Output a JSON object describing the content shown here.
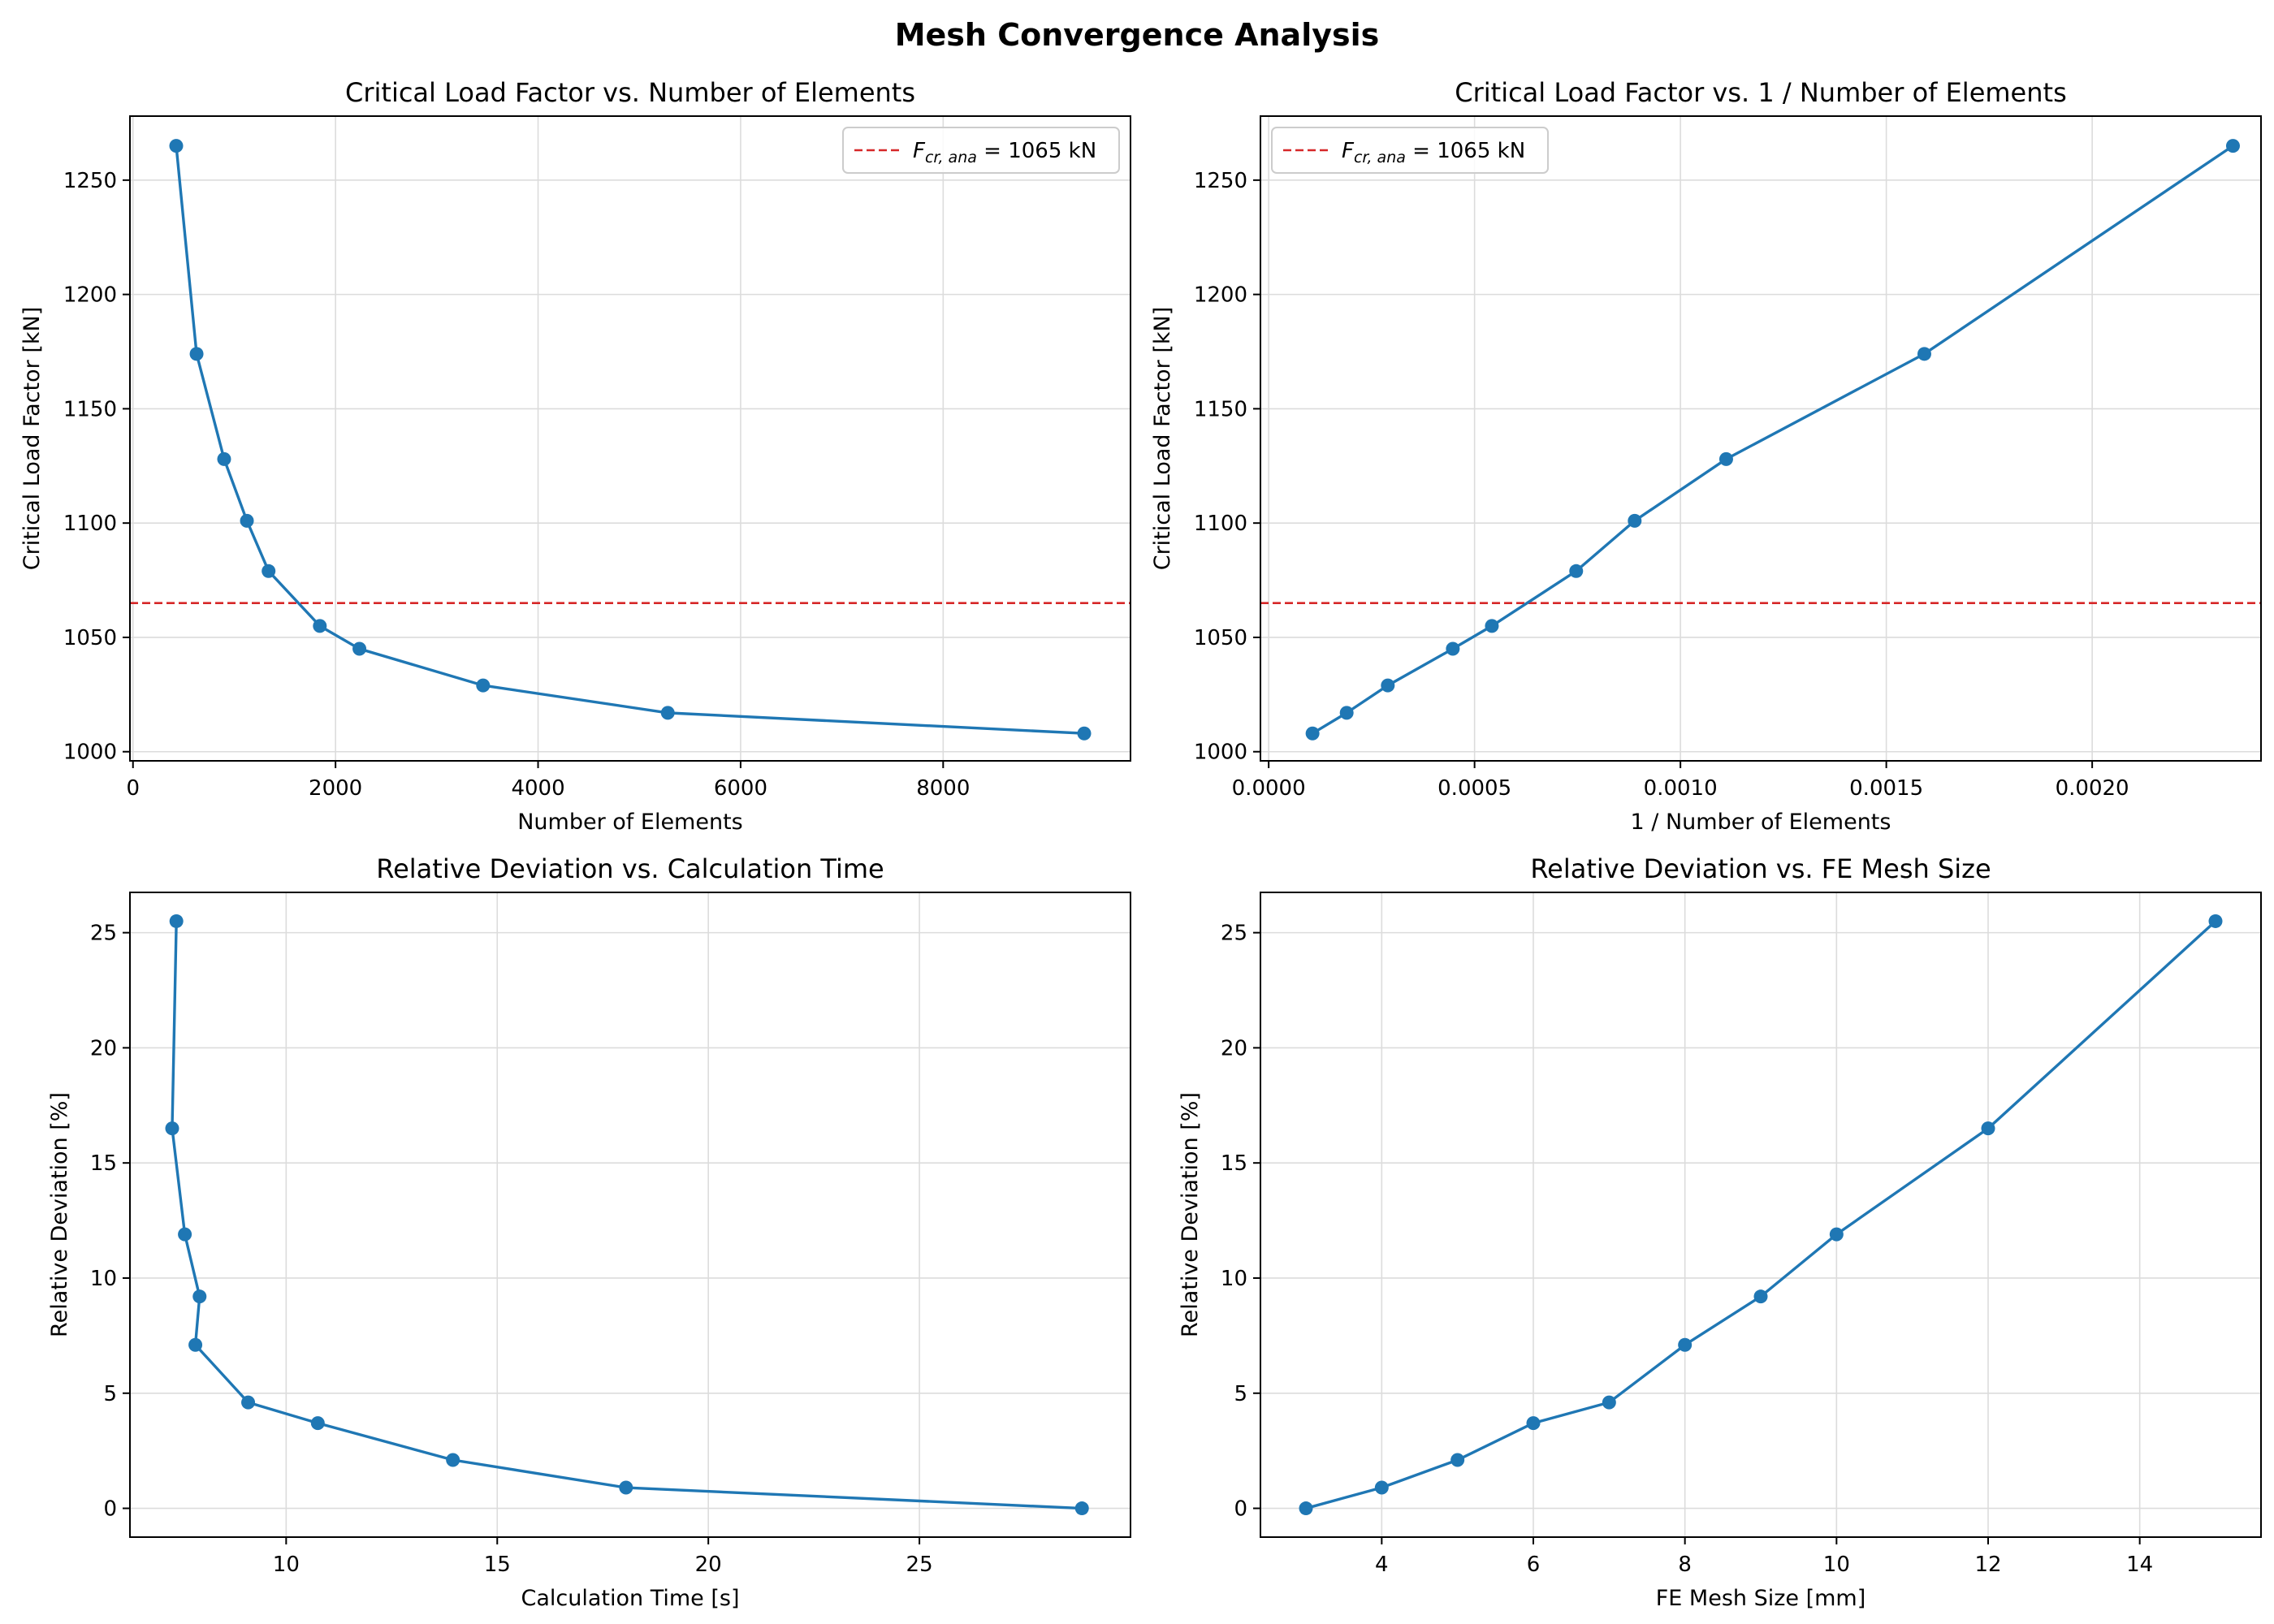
{
  "figure": {
    "suptitle": "Mesh Convergence Analysis"
  },
  "colors": {
    "series": "#1f77b4",
    "reference": "#d62728",
    "grid": "#dcdcdc"
  },
  "chart_data": [
    {
      "type": "line",
      "title": "Critical Load Factor vs. Number of Elements",
      "xlabel": "Number of Elements",
      "ylabel": "Critical Load Factor [kN]",
      "xlim": [
        -30,
        9850
      ],
      "ylim": [
        996,
        1278
      ],
      "xticks": [
        0,
        2000,
        4000,
        6000,
        8000
      ],
      "xtick_labels": [
        "0",
        "2000",
        "4000",
        "6000",
        "8000"
      ],
      "yticks": [
        1000,
        1050,
        1100,
        1150,
        1200,
        1250
      ],
      "ytick_labels": [
        "1000",
        "1050",
        "1100",
        "1150",
        "1200",
        "1250"
      ],
      "grid": true,
      "legend": {
        "position": "upper-right",
        "label_main": "F",
        "label_sub": "cr, ana",
        "label_rest": " = 1065 kN"
      },
      "reference_line": {
        "axis": "y",
        "value": 1065,
        "style": "dashed"
      },
      "series": [
        {
          "x": [
            427,
            628,
            900,
            1125,
            1339,
            1845,
            2236,
            3457,
            5281,
            9393
          ],
          "y": [
            1265,
            1174,
            1128,
            1101,
            1079,
            1055,
            1045,
            1029,
            1017,
            1008
          ]
        }
      ]
    },
    {
      "type": "line",
      "title": "Critical Load Factor vs. 1 / Number of Elements",
      "xlabel": "1 / Number of Elements",
      "ylabel": "Critical Load Factor [kN]",
      "xlim": [
        -2e-05,
        0.00241
      ],
      "ylim": [
        996,
        1278
      ],
      "xticks": [
        0,
        0.0005,
        0.001,
        0.0015,
        0.002
      ],
      "xtick_labels": [
        "0.0000",
        "0.0005",
        "0.0010",
        "0.0015",
        "0.0020"
      ],
      "yticks": [
        1000,
        1050,
        1100,
        1150,
        1200,
        1250
      ],
      "ytick_labels": [
        "1000",
        "1050",
        "1100",
        "1150",
        "1200",
        "1250"
      ],
      "grid": true,
      "legend": {
        "position": "upper-left",
        "label_main": "F",
        "label_sub": "cr, ana",
        "label_rest": " = 1065 kN"
      },
      "reference_line": {
        "axis": "y",
        "value": 1065,
        "style": "dashed"
      },
      "series": [
        {
          "x": [
            0.0001065,
            0.0001894,
            0.0002893,
            0.0004472,
            0.000542,
            0.0007468,
            0.0008889,
            0.0011111,
            0.0015924,
            0.0023419
          ],
          "y": [
            1008,
            1017,
            1029,
            1045,
            1055,
            1079,
            1101,
            1128,
            1174,
            1265
          ]
        }
      ]
    },
    {
      "type": "line",
      "title": "Relative Deviation vs. Calculation Time",
      "xlabel": "Calculation Time [s]",
      "ylabel": "Relative Deviation [%]",
      "xlim": [
        6.3,
        30.0
      ],
      "ylim": [
        -1.25,
        26.75
      ],
      "xticks": [
        10,
        15,
        20,
        25
      ],
      "xtick_labels": [
        "10",
        "15",
        "20",
        "25"
      ],
      "yticks": [
        0,
        5,
        10,
        15,
        20,
        25
      ],
      "ytick_labels": [
        "0",
        "5",
        "10",
        "15",
        "20",
        "25"
      ],
      "grid": true,
      "series": [
        {
          "x": [
            7.4,
            7.3,
            7.6,
            7.95,
            7.85,
            9.1,
            10.75,
            13.95,
            18.05,
            28.85
          ],
          "y": [
            25.5,
            16.5,
            11.9,
            9.2,
            7.1,
            4.6,
            3.7,
            2.1,
            0.9,
            0.0
          ]
        }
      ]
    },
    {
      "type": "line",
      "title": "Relative Deviation vs. FE Mesh Size",
      "xlabel": "FE Mesh Size [mm]",
      "ylabel": "Relative Deviation [%]",
      "xlim": [
        2.4,
        15.6
      ],
      "ylim": [
        -1.25,
        26.75
      ],
      "xticks": [
        4,
        6,
        8,
        10,
        12,
        14
      ],
      "xtick_labels": [
        "4",
        "6",
        "8",
        "10",
        "12",
        "14"
      ],
      "yticks": [
        0,
        5,
        10,
        15,
        20,
        25
      ],
      "ytick_labels": [
        "0",
        "5",
        "10",
        "15",
        "20",
        "25"
      ],
      "grid": true,
      "series": [
        {
          "x": [
            3,
            4,
            5,
            6,
            7,
            8,
            9,
            10,
            12,
            15
          ],
          "y": [
            0.0,
            0.9,
            2.1,
            3.7,
            4.6,
            7.1,
            9.2,
            11.9,
            16.5,
            25.5
          ]
        }
      ]
    }
  ]
}
